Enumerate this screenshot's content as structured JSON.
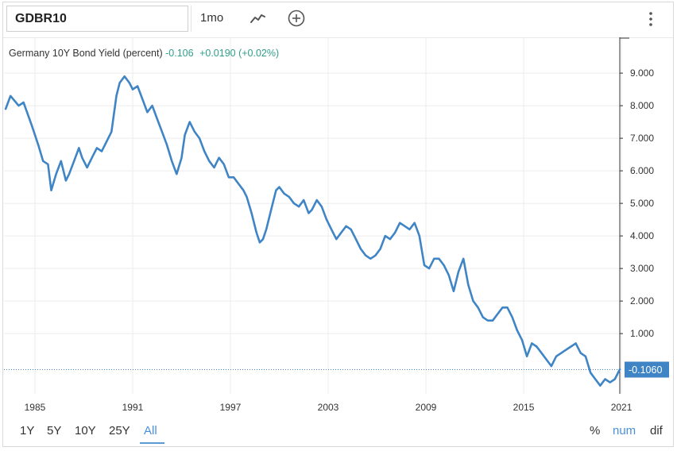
{
  "toolbar": {
    "symbol": "GDBR10",
    "interval": "1mo",
    "icons": {
      "chart_type": "line-chart-icon",
      "add": "plus-circle-icon",
      "menu": "vertical-ellipsis-icon"
    }
  },
  "legend": {
    "name": "Germany 10Y Bond Yield (percent)",
    "last": "-0.106",
    "change": "+0.0190",
    "change_pct": "(+0.02%)"
  },
  "range_buttons": [
    "1Y",
    "5Y",
    "10Y",
    "25Y",
    "All"
  ],
  "active_range": "All",
  "mode_buttons": [
    "%",
    "num",
    "dif"
  ],
  "active_mode": "num",
  "colors": {
    "line": "#3f85c6",
    "last_label_bg": "#3f85c6",
    "positive": "#2f9e8a",
    "accent": "#4a90d9"
  },
  "chart_data": {
    "type": "line",
    "title": "Germany 10Y Bond Yield (percent)",
    "xlabel": "",
    "ylabel": "",
    "x_tick_labels": [
      "1985",
      "1991",
      "1997",
      "2003",
      "2009",
      "2015",
      "2021"
    ],
    "y_tick_labels": [
      "1.000",
      "2.000",
      "3.000",
      "4.000",
      "5.000",
      "6.000",
      "7.000",
      "8.000",
      "9.000"
    ],
    "y_ticks": [
      1,
      2,
      3,
      4,
      5,
      6,
      7,
      8,
      9
    ],
    "ylim": [
      -0.85,
      10.1
    ],
    "xlim": [
      1983.1,
      2020.9
    ],
    "last_value": -0.106,
    "last_value_label": "-0.1060",
    "grid": true,
    "legend_position": "top-left",
    "series": [
      {
        "x": [
          1983.2,
          1983.5,
          1984.0,
          1984.3,
          1984.8,
          1985.2,
          1985.5,
          1985.8,
          1986.0,
          1986.3,
          1986.6,
          1986.9,
          1987.1,
          1987.4,
          1987.7,
          1987.9,
          1988.2,
          1988.5,
          1988.8,
          1989.1,
          1989.4,
          1989.7,
          1990.0,
          1990.2,
          1990.5,
          1990.8,
          1991.0,
          1991.3,
          1991.6,
          1991.9,
          1992.2,
          1992.5,
          1992.8,
          1993.1,
          1993.4,
          1993.7,
          1994.0,
          1994.2,
          1994.5,
          1994.8,
          1995.1,
          1995.4,
          1995.7,
          1996.0,
          1996.3,
          1996.6,
          1996.9,
          1997.2,
          1997.5,
          1997.8,
          1998.0,
          1998.3,
          1998.6,
          1998.8,
          1999.0,
          1999.2,
          1999.5,
          1999.8,
          2000.0,
          2000.3,
          2000.6,
          2000.9,
          2001.2,
          2001.5,
          2001.8,
          2002.0,
          2002.3,
          2002.6,
          2002.9,
          2003.2,
          2003.5,
          2003.8,
          2004.1,
          2004.4,
          2004.7,
          2005.0,
          2005.3,
          2005.6,
          2005.9,
          2006.2,
          2006.5,
          2006.8,
          2007.1,
          2007.4,
          2007.7,
          2008.0,
          2008.3,
          2008.6,
          2008.9,
          2009.2,
          2009.5,
          2009.8,
          2010.1,
          2010.4,
          2010.7,
          2011.0,
          2011.3,
          2011.6,
          2011.9,
          2012.2,
          2012.5,
          2012.8,
          2013.1,
          2013.4,
          2013.7,
          2014.0,
          2014.3,
          2014.6,
          2014.9,
          2015.2,
          2015.5,
          2015.8,
          2016.1,
          2016.4,
          2016.7,
          2017.0,
          2017.3,
          2017.6,
          2017.9,
          2018.2,
          2018.5,
          2018.8,
          2019.1,
          2019.4,
          2019.7,
          2020.0,
          2020.3,
          2020.6,
          2020.9
        ],
        "y": [
          7.9,
          8.3,
          8.0,
          8.1,
          7.4,
          6.8,
          6.3,
          6.2,
          5.4,
          5.9,
          6.3,
          5.7,
          5.9,
          6.3,
          6.7,
          6.4,
          6.1,
          6.4,
          6.7,
          6.6,
          6.9,
          7.2,
          8.3,
          8.7,
          8.9,
          8.7,
          8.5,
          8.6,
          8.2,
          7.8,
          8.0,
          7.6,
          7.2,
          6.8,
          6.3,
          5.9,
          6.4,
          7.1,
          7.5,
          7.2,
          7.0,
          6.6,
          6.3,
          6.1,
          6.4,
          6.2,
          5.8,
          5.8,
          5.6,
          5.4,
          5.2,
          4.7,
          4.1,
          3.8,
          3.9,
          4.2,
          4.8,
          5.4,
          5.5,
          5.3,
          5.2,
          5.0,
          4.9,
          5.1,
          4.7,
          4.8,
          5.1,
          4.9,
          4.5,
          4.2,
          3.9,
          4.1,
          4.3,
          4.2,
          3.9,
          3.6,
          3.4,
          3.3,
          3.4,
          3.6,
          4.0,
          3.9,
          4.1,
          4.4,
          4.3,
          4.2,
          4.4,
          4.0,
          3.1,
          3.0,
          3.3,
          3.3,
          3.1,
          2.8,
          2.3,
          2.9,
          3.3,
          2.5,
          2.0,
          1.8,
          1.5,
          1.4,
          1.4,
          1.6,
          1.8,
          1.8,
          1.5,
          1.1,
          0.8,
          0.3,
          0.7,
          0.6,
          0.4,
          0.2,
          0.0,
          0.3,
          0.4,
          0.5,
          0.6,
          0.7,
          0.4,
          0.3,
          -0.2,
          -0.4,
          -0.6,
          -0.4,
          -0.5,
          -0.4,
          -0.1
        ]
      }
    ]
  }
}
